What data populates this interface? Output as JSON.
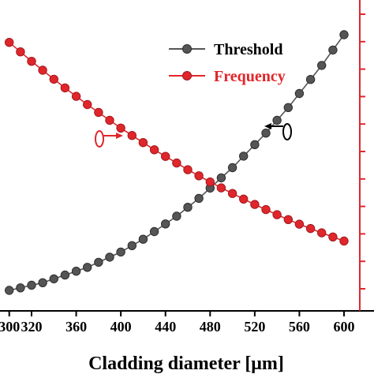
{
  "chart_data": {
    "type": "line",
    "xlabel": "Cladding diameter  [μm]",
    "xlim": [
      300,
      610
    ],
    "x_ticks": [
      "300",
      "320",
      "360",
      "400",
      "440",
      "480",
      "520",
      "560",
      "600"
    ],
    "grid": false,
    "legend_position": "top-right",
    "x": [
      300,
      310,
      320,
      330,
      340,
      350,
      360,
      370,
      380,
      390,
      400,
      410,
      420,
      430,
      440,
      450,
      460,
      470,
      480,
      490,
      500,
      510,
      520,
      530,
      540,
      550,
      560,
      570,
      580,
      590,
      600
    ],
    "series": [
      {
        "name": "Threshold",
        "axis": "left",
        "color": "#555555",
        "values": [
          0.03,
          0.04,
          0.05,
          0.06,
          0.075,
          0.09,
          0.105,
          0.12,
          0.14,
          0.16,
          0.18,
          0.205,
          0.23,
          0.26,
          0.29,
          0.32,
          0.355,
          0.39,
          0.43,
          0.47,
          0.51,
          0.555,
          0.6,
          0.645,
          0.695,
          0.745,
          0.8,
          0.855,
          0.91,
          0.97,
          1.03
        ]
      },
      {
        "name": "Frequency",
        "axis": "right",
        "color": "#e0262b",
        "values": [
          1.0,
          0.963,
          0.926,
          0.891,
          0.856,
          0.822,
          0.789,
          0.757,
          0.726,
          0.695,
          0.665,
          0.636,
          0.608,
          0.58,
          0.554,
          0.528,
          0.502,
          0.478,
          0.454,
          0.431,
          0.409,
          0.387,
          0.366,
          0.346,
          0.326,
          0.307,
          0.289,
          0.272,
          0.255,
          0.239,
          0.223
        ]
      }
    ]
  },
  "colors": {
    "threshold": "#555555",
    "frequency": "#e0262b",
    "right_axis": "#e0262b"
  }
}
